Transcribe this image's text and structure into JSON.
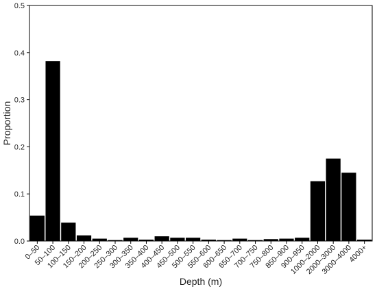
{
  "chart_data": {
    "type": "bar",
    "title": "",
    "xlabel": "Depth (m)",
    "ylabel": "Proportion",
    "ylim": [
      0,
      0.5
    ],
    "yticks": [
      "0.0",
      "0.1",
      "0.2",
      "0.3",
      "0.4",
      "0.5"
    ],
    "grid": false,
    "legend": "none",
    "categories": [
      "0–50",
      "50–100",
      "100–150",
      "150–200",
      "200–250",
      "250–300",
      "300–350",
      "350–400",
      "400–450",
      "450–500",
      "500–550",
      "550–600",
      "600–650",
      "650–700",
      "700–750",
      "750–800",
      "850–900",
      "900–950",
      "1000–2000",
      "2000–3000",
      "3000–4000",
      "4000+"
    ],
    "values": [
      0.054,
      0.382,
      0.039,
      0.012,
      0.005,
      0.002,
      0.007,
      0.003,
      0.01,
      0.007,
      0.007,
      0.003,
      0.002,
      0.005,
      0.002,
      0.004,
      0.005,
      0.007,
      0.127,
      0.175,
      0.145,
      0.003
    ],
    "bar_color": "#000000"
  }
}
